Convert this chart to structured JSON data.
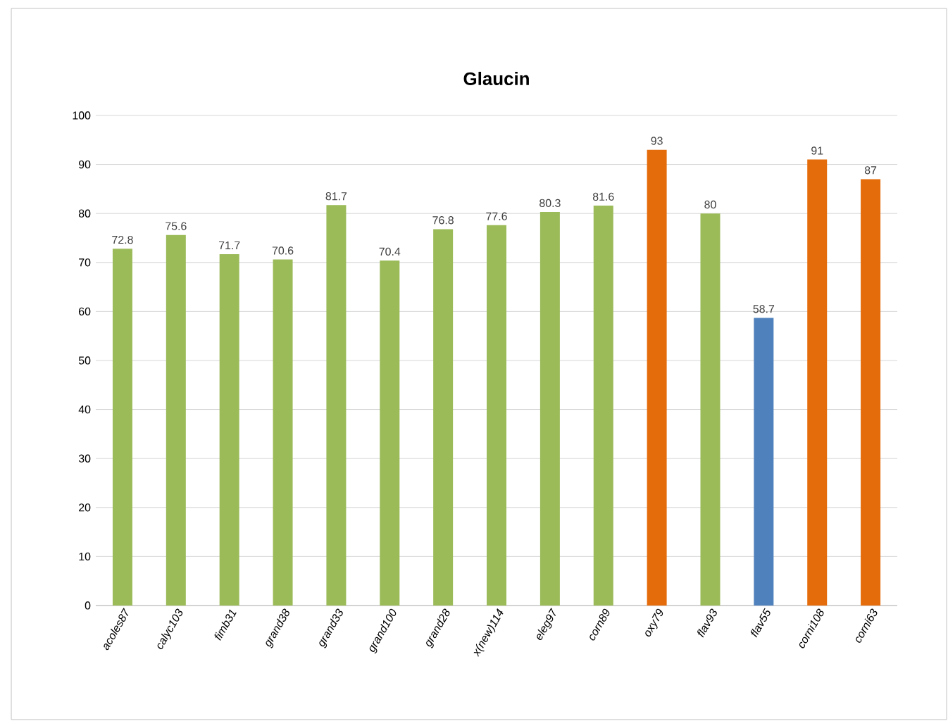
{
  "chart_data": {
    "type": "bar",
    "title": "Glaucin",
    "categories": [
      "acoles87",
      "calyc103",
      "fimb31",
      "grand38",
      "grand33",
      "grand100",
      "grand28",
      "x(new)114",
      "eleg97",
      "corn89",
      "oxy79",
      "flav93",
      "flav55",
      "corni108",
      "corni63"
    ],
    "values": [
      72.8,
      75.6,
      71.7,
      70.6,
      81.7,
      70.4,
      76.8,
      77.6,
      80.3,
      81.6,
      93,
      80,
      58.7,
      91,
      87
    ],
    "colors": [
      "#9bbb59",
      "#9bbb59",
      "#9bbb59",
      "#9bbb59",
      "#9bbb59",
      "#9bbb59",
      "#9bbb59",
      "#9bbb59",
      "#9bbb59",
      "#9bbb59",
      "#e46c0a",
      "#9bbb59",
      "#4f81bd",
      "#e46c0a",
      "#e46c0a"
    ],
    "ylim": [
      0,
      100
    ],
    "yticks": [
      0,
      10,
      20,
      30,
      40,
      50,
      60,
      70,
      80,
      90,
      100
    ],
    "grid": "y",
    "data_labels": true
  }
}
